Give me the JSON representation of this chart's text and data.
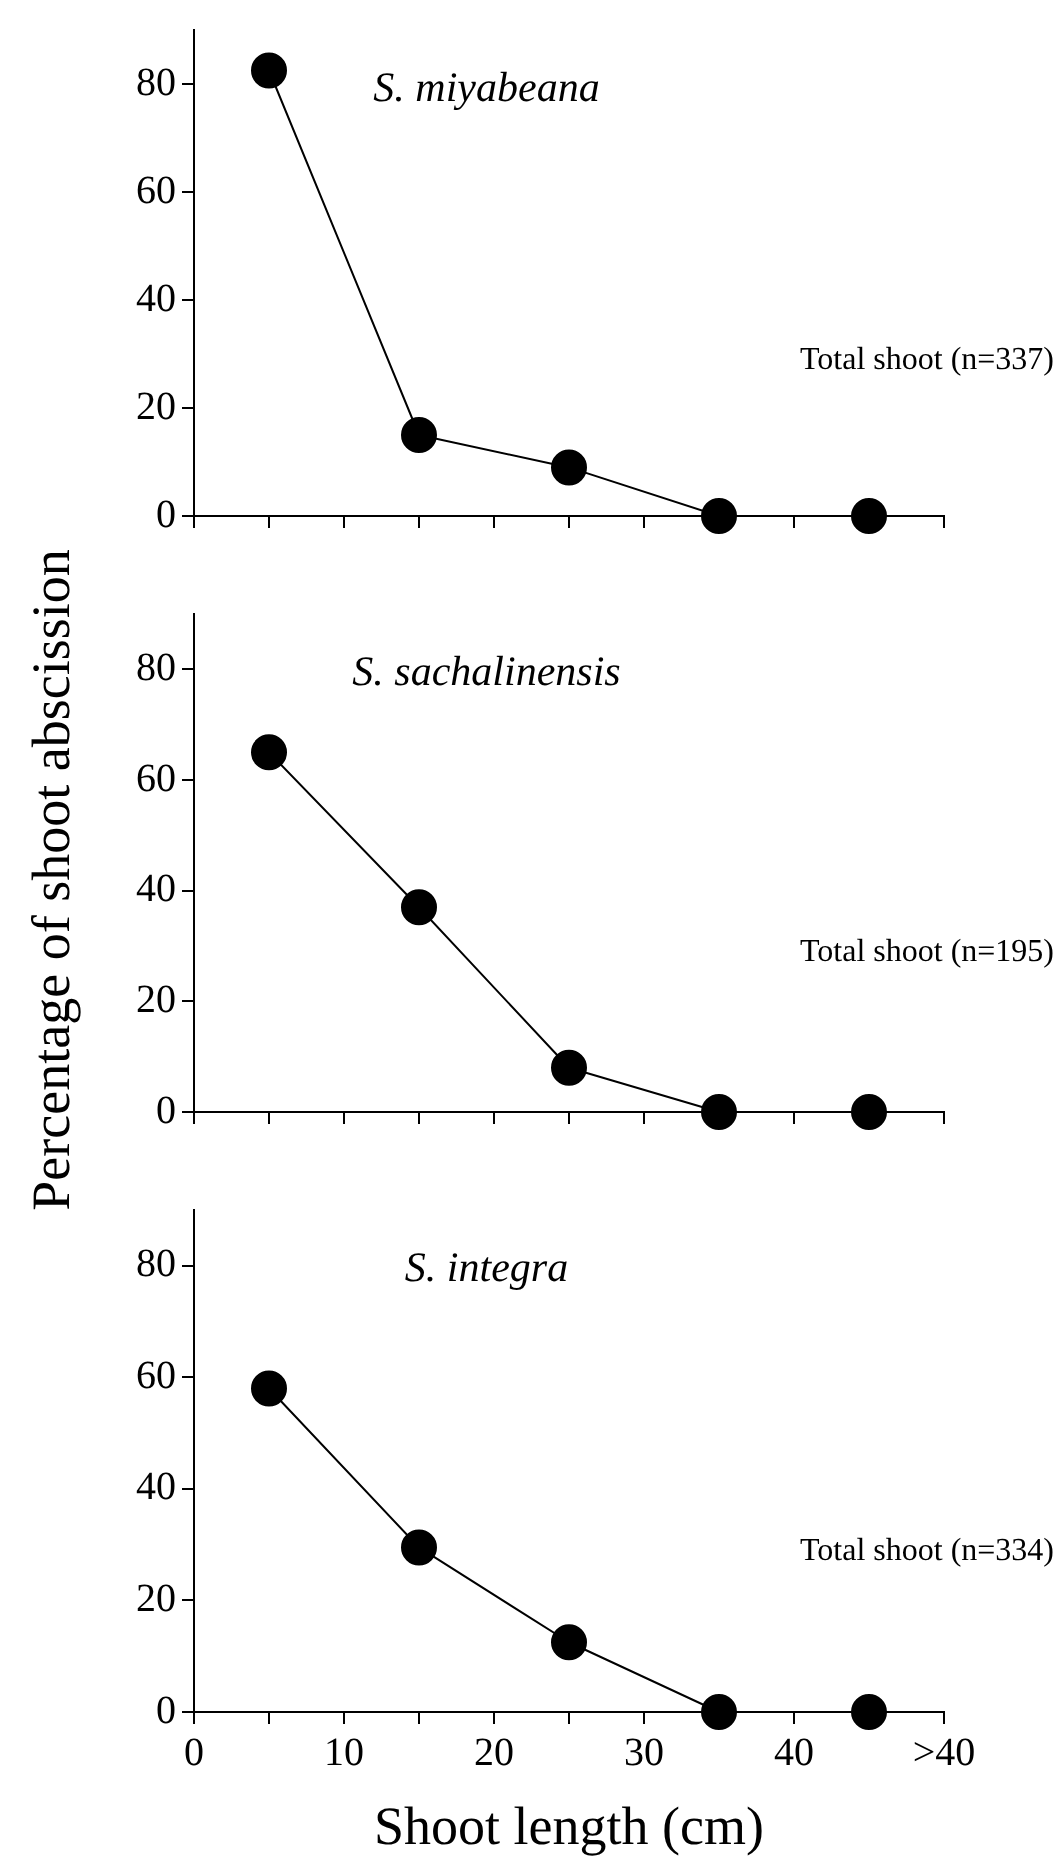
{
  "chart_data": [
    {
      "type": "line",
      "title": "S. miyabeana",
      "x": [
        5,
        15,
        25,
        35,
        45
      ],
      "series": [
        {
          "color": "#000000",
          "values": [
            82.5,
            15,
            9,
            0,
            0
          ]
        }
      ],
      "xlim": [
        0,
        50
      ],
      "xticks": [
        0,
        5,
        10,
        15,
        20,
        25,
        30,
        35,
        40,
        45,
        50
      ],
      "ylim": [
        0,
        90
      ],
      "yticks": [
        0,
        20,
        40,
        60,
        80
      ],
      "tick_labels": "y",
      "grid": false,
      "legend": false,
      "marker": "circle",
      "line_style": "solid",
      "annotations": [
        "Total shoot (n=337)"
      ]
    },
    {
      "type": "line",
      "title": "S. sachalinensis",
      "ylabel": "Percentage of shoot abscission",
      "x": [
        5,
        15,
        25,
        35,
        45
      ],
      "series": [
        {
          "color": "#000000",
          "values": [
            65,
            37,
            8,
            0,
            0
          ]
        }
      ],
      "xlim": [
        0,
        50
      ],
      "xticks": [
        0,
        5,
        10,
        15,
        20,
        25,
        30,
        35,
        40,
        45,
        50
      ],
      "ylim": [
        0,
        90
      ],
      "yticks": [
        0,
        20,
        40,
        60,
        80
      ],
      "tick_labels": "y",
      "grid": false,
      "legend": false,
      "marker": "circle",
      "line_style": "solid",
      "annotations": [
        "Total shoot (n=195)"
      ]
    },
    {
      "type": "line",
      "title": "S. integra",
      "xlabel": "Shoot length (cm)",
      "x": [
        5,
        15,
        25,
        35,
        45
      ],
      "series": [
        {
          "color": "#000000",
          "values": [
            58,
            29.5,
            12.5,
            0,
            0
          ]
        }
      ],
      "xlim": [
        0,
        50
      ],
      "xticks": [
        0,
        {
          "value": 5,
          "label": null
        },
        10,
        {
          "value": 15,
          "label": null
        },
        20,
        {
          "value": 25,
          "label": null
        },
        30,
        {
          "value": 35,
          "label": null
        },
        40,
        {
          "value": 45,
          "label": null
        },
        {
          "value": 50,
          "label": ">40"
        }
      ],
      "ylim": [
        0,
        90
      ],
      "yticks": [
        0,
        20,
        40,
        60,
        80
      ],
      "grid": false,
      "legend": false,
      "marker": "circle",
      "line_style": "solid",
      "annotations": [
        "Total shoot (n=334)"
      ]
    }
  ]
}
